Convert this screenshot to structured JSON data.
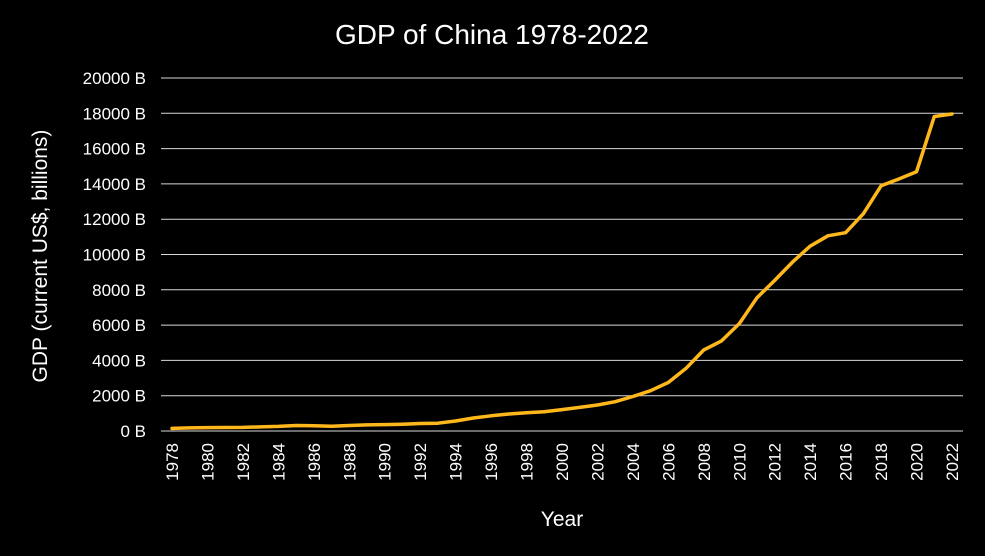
{
  "chart_data": {
    "type": "line",
    "title": "GDP of China 1978-2022",
    "xlabel": "Year",
    "ylabel": "GDP (current US$, billions)",
    "y_tick_suffix": " B",
    "ylim": [
      0,
      20000
    ],
    "y_ticks": [
      0,
      2000,
      4000,
      6000,
      8000,
      10000,
      12000,
      14000,
      16000,
      18000,
      20000
    ],
    "xlim": [
      1978,
      2022
    ],
    "x_ticks": [
      1978,
      1980,
      1982,
      1984,
      1986,
      1988,
      1990,
      1992,
      1994,
      1996,
      1998,
      2000,
      2002,
      2004,
      2006,
      2008,
      2010,
      2012,
      2014,
      2016,
      2018,
      2020,
      2022
    ],
    "grid": "horizontal",
    "line_color": "#FFB81C",
    "background_color": "#000000",
    "series": [
      {
        "x": [
          1978,
          1979,
          1980,
          1981,
          1982,
          1983,
          1984,
          1985,
          1986,
          1987,
          1988,
          1989,
          1990,
          1991,
          1992,
          1993,
          1994,
          1995,
          1996,
          1997,
          1998,
          1999,
          2000,
          2001,
          2002,
          2003,
          2004,
          2005,
          2006,
          2007,
          2008,
          2009,
          2010,
          2011,
          2012,
          2013,
          2014,
          2015,
          2016,
          2017,
          2018,
          2019,
          2020,
          2021,
          2022
        ],
        "values": [
          150,
          178,
          191,
          196,
          205,
          230,
          260,
          309,
          301,
          273,
          312,
          348,
          361,
          383,
          427,
          444,
          564,
          734,
          864,
          962,
          1029,
          1094,
          1211,
          1339,
          1471,
          1660,
          1955,
          2286,
          2752,
          3552,
          4594,
          5102,
          6087,
          7552,
          8532,
          9570,
          10476,
          11062,
          11233,
          12310,
          13895,
          14280,
          14688,
          17820,
          17963
        ]
      }
    ]
  }
}
